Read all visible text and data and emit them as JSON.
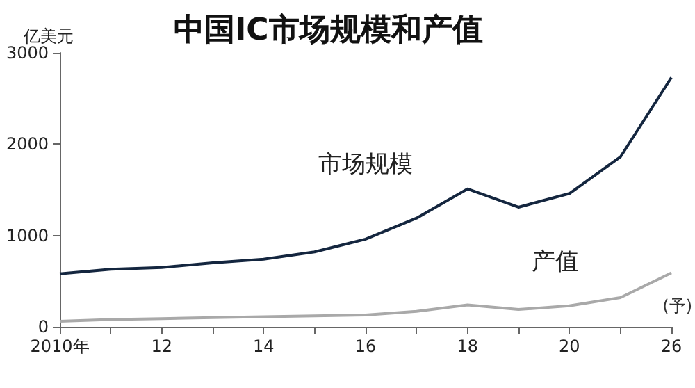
{
  "chart_data": {
    "type": "line",
    "title": "中国IC市场规模和产值",
    "ylabel": "亿美元",
    "categories": [
      "2010年",
      null,
      "12",
      null,
      "14",
      null,
      "16",
      null,
      "18",
      null,
      "20",
      null,
      "26"
    ],
    "series": [
      {
        "name": "市场规模",
        "color": "#14263f",
        "values": [
          580,
          630,
          650,
          700,
          740,
          820,
          960,
          1190,
          1510,
          1310,
          1460,
          1860,
          2730
        ]
      },
      {
        "name": "产值",
        "color": "#a9a9a9",
        "values": [
          60,
          80,
          90,
          100,
          110,
          120,
          130,
          170,
          240,
          190,
          230,
          320,
          590
        ]
      }
    ],
    "ylim": [
      0,
      3000
    ],
    "yticks": [
      0,
      1000,
      2000,
      3000
    ],
    "grid": false,
    "legend": false,
    "marker": "none",
    "line_style": "solid",
    "annotations": [
      "(予)"
    ]
  }
}
